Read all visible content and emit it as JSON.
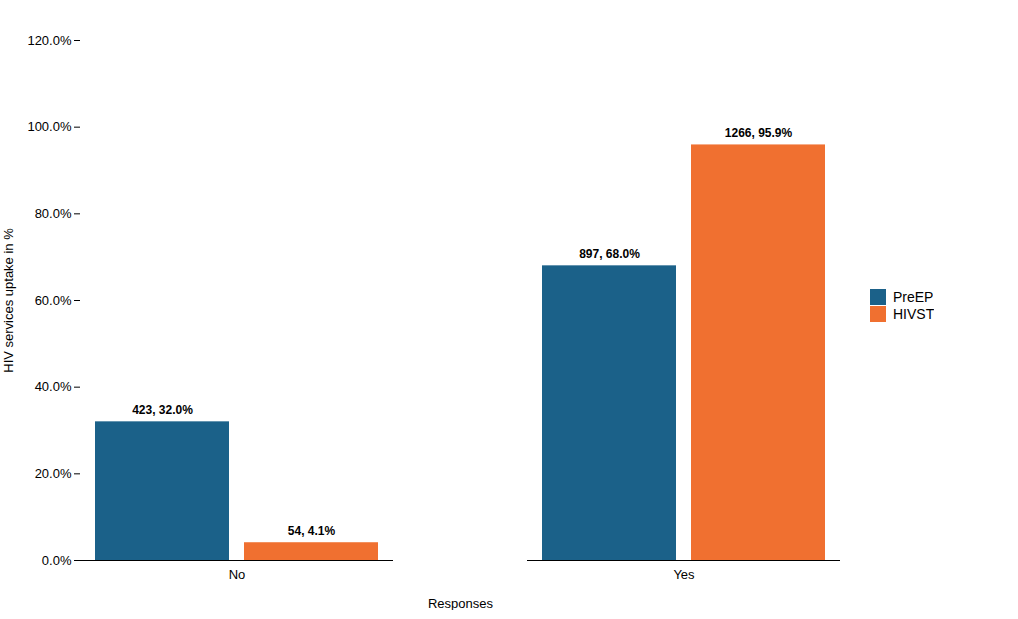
{
  "chart_data": {
    "type": "bar",
    "xlabel": "Responses",
    "ylabel": "HIV services uptake in %",
    "categories": [
      "No",
      "Yes"
    ],
    "series": [
      {
        "name": "PreEP",
        "color": "#1B6189",
        "values": [
          32.0,
          68.0
        ],
        "value_labels": [
          "423, 32.0%",
          "897, 68.0%"
        ]
      },
      {
        "name": "HIVST",
        "color": "#F07030",
        "values": [
          4.1,
          95.9
        ],
        "value_labels": [
          "54, 4.1%",
          "1266, 95.9%"
        ]
      }
    ],
    "ylim": [
      0,
      120
    ],
    "yticks": [
      {
        "value": 0,
        "label": "0.0%"
      },
      {
        "value": 20.0,
        "label": "20.0%"
      },
      {
        "value": 40.0,
        "label": "40.0%"
      },
      {
        "value": 60.0,
        "label": "60.0%"
      },
      {
        "value": 80.0,
        "label": "80.0%"
      },
      {
        "value": 100.0,
        "label": "100.0%"
      },
      {
        "value": 120.0,
        "label": "120.0%"
      }
    ],
    "data_labels": true,
    "grid": false,
    "legend": "right"
  }
}
